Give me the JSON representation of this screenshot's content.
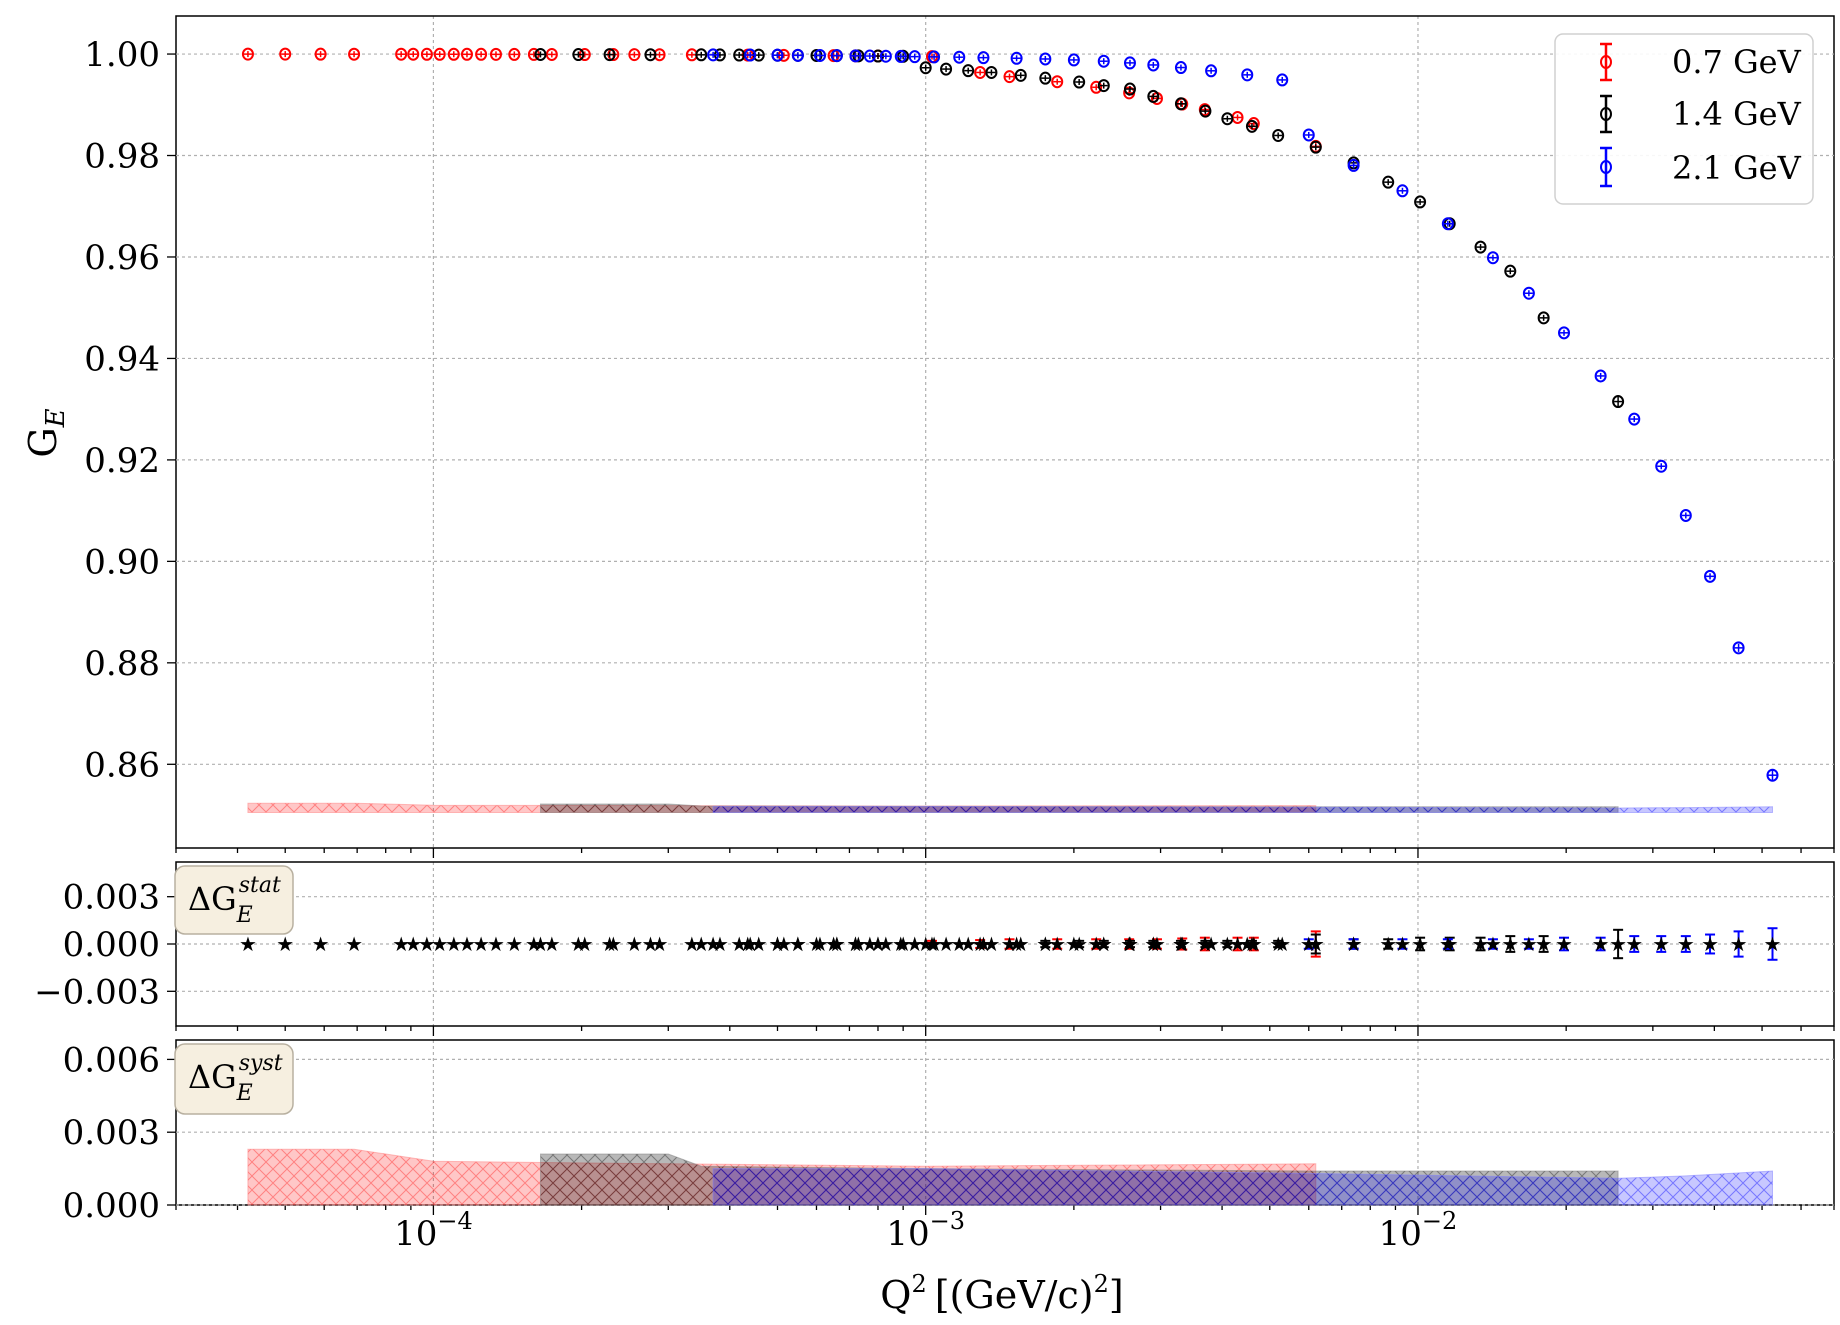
{
  "chart_data": [
    {
      "id": "main",
      "type": "scatter",
      "ylabel_main": "G",
      "ylabel_sub": "E",
      "xscale": "log",
      "xlim": [
        3e-05,
        0.07
      ],
      "ylim": [
        0.8435,
        1.0075
      ],
      "yticks": [
        "0.86",
        "0.88",
        "0.90",
        "0.92",
        "0.94",
        "0.96",
        "0.98",
        "1.00"
      ],
      "grid": true,
      "legend_position": "top-right",
      "series": [
        {
          "name": "0.7 GeV",
          "color": "#ff0000",
          "x": [
            4.2e-05,
            5e-05,
            5.9e-05,
            6.9e-05,
            8.6e-05,
            9.1e-05,
            9.7e-05,
            0.000103,
            0.00011,
            0.000117,
            0.000125,
            0.000134,
            0.000146,
            0.00016,
            0.000174,
            0.000203,
            0.000232,
            0.000256,
            0.000288,
            0.000335,
            0.000435,
            0.000515,
            0.00065,
            0.00072,
            0.0008,
            0.00103,
            0.00129,
            0.00148,
            0.00185,
            0.00222,
            0.00259,
            0.00295,
            0.00332,
            0.00369,
            0.0043,
            0.00464,
            0.0062
          ],
          "y": [
            0.99999,
            0.99999,
            0.99998,
            0.99997,
            0.99997,
            0.99997,
            0.99996,
            0.99996,
            0.99996,
            0.99995,
            0.99995,
            0.99994,
            0.99993,
            0.99993,
            0.99992,
            0.99991,
            0.9999,
            0.99989,
            0.99987,
            0.99985,
            0.9998,
            0.99975,
            0.99969,
            0.99965,
            0.99961,
            0.9995,
            0.99637,
            0.99555,
            0.99455,
            0.99345,
            0.99235,
            0.99125,
            0.99015,
            0.98905,
            0.9875,
            0.9863,
            0.9818
          ],
          "err": [
            6e-05,
            6e-05,
            6e-05,
            6e-05,
            6e-05,
            6e-05,
            6e-05,
            6e-05,
            6e-05,
            6e-05,
            6e-05,
            6e-05,
            6e-05,
            6e-05,
            6e-05,
            6e-05,
            6e-05,
            6e-05,
            6e-05,
            6e-05,
            6e-05,
            6e-05,
            6e-05,
            6e-05,
            6e-05,
            0.0002,
            0.00025,
            0.0003,
            0.0003,
            0.0003,
            0.0003,
            0.0003,
            0.00035,
            0.0004,
            0.0004,
            0.0004,
            0.0008
          ]
        },
        {
          "name": "1.4 GeV",
          "color": "#000000",
          "x": [
            0.000165,
            0.000197,
            0.000228,
            0.000276,
            0.00035,
            0.000382,
            0.000418,
            0.000458,
            0.0005,
            0.00055,
            0.0006,
            0.00066,
            0.00073,
            0.0008,
            0.0009,
            0.001,
            0.0011,
            0.00122,
            0.00136,
            0.00156,
            0.00175,
            0.00205,
            0.0023,
            0.0026,
            0.0029,
            0.0033,
            0.0037,
            0.0041,
            0.0046,
            0.0052,
            0.0062,
            0.0074,
            0.0087,
            0.0101,
            0.0116,
            0.0134,
            0.0154,
            0.018,
            0.0255
          ],
          "y": [
            0.99992,
            0.9999,
            0.99989,
            0.99987,
            0.99985,
            0.99983,
            0.99981,
            0.99979,
            0.99977,
            0.99975,
            0.99972,
            0.99969,
            0.99965,
            0.99961,
            0.99956,
            0.9973,
            0.99704,
            0.99673,
            0.99637,
            0.9958,
            0.99525,
            0.99449,
            0.99378,
            0.9931,
            0.99165,
            0.9902,
            0.98875,
            0.98725,
            0.98575,
            0.98395,
            0.98165,
            0.97855,
            0.97475,
            0.97085,
            0.96655,
            0.96195,
            0.9572,
            0.948,
            0.9315
          ],
          "err": [
            6e-05,
            6e-05,
            6e-05,
            6e-05,
            6e-05,
            6e-05,
            6e-05,
            6e-05,
            6e-05,
            6e-05,
            6e-05,
            6e-05,
            6e-05,
            6e-05,
            6e-05,
            6e-05,
            6e-05,
            6e-05,
            6e-05,
            6e-05,
            0.0002,
            0.0002,
            0.0002,
            0.0002,
            0.0002,
            0.0002,
            0.0002,
            0.0002,
            0.0002,
            0.0002,
            0.0006,
            0.0003,
            0.0003,
            0.0004,
            0.0004,
            0.0004,
            0.0005,
            0.0005,
            0.0009
          ]
        },
        {
          "name": "2.1 GeV",
          "color": "#0000ff",
          "x": [
            0.00037,
            0.00044,
            0.0005,
            0.00055,
            0.00061,
            0.00066,
            0.00072,
            0.00077,
            0.00083,
            0.00089,
            0.00095,
            0.00104,
            0.00117,
            0.00131,
            0.00153,
            0.00175,
            0.002,
            0.0023,
            0.0026,
            0.0029,
            0.0033,
            0.0038,
            0.0045,
            0.0053,
            0.006,
            0.0074,
            0.0093,
            0.0115,
            0.0142,
            0.0168,
            0.0198,
            0.0235,
            0.0275,
            0.0312,
            0.035,
            0.0392,
            0.0448,
            0.0525
          ],
          "y": [
            0.99984,
            0.99981,
            0.99978,
            0.99975,
            0.99972,
            0.99969,
            0.99965,
            0.99961,
            0.99957,
            0.99953,
            0.99949,
            0.99944,
            0.99938,
            0.99929,
            0.99917,
            0.99903,
            0.99884,
            0.99859,
            0.99826,
            0.99785,
            0.99734,
            0.9967,
            0.9959,
            0.9949,
            0.98405,
            0.97805,
            0.97305,
            0.96655,
            0.95985,
            0.95285,
            0.94505,
            0.93655,
            0.92805,
            0.91875,
            0.90905,
            0.89705,
            0.88295,
            0.85785
          ],
          "err": [
            6e-05,
            6e-05,
            6e-05,
            6e-05,
            6e-05,
            6e-05,
            6e-05,
            6e-05,
            6e-05,
            6e-05,
            6e-05,
            6e-05,
            6e-05,
            6e-05,
            6e-05,
            6e-05,
            6e-05,
            6e-05,
            6e-05,
            6e-05,
            6e-05,
            6e-05,
            6e-05,
            6e-05,
            0.0003,
            0.0003,
            0.0003,
            0.0003,
            0.0003,
            0.0003,
            0.0004,
            0.0004,
            0.0005,
            0.0005,
            0.0005,
            0.0006,
            0.0008,
            0.001
          ]
        }
      ],
      "syst_bands": [
        {
          "series": "0.7 GeV",
          "color": "#ff8080",
          "x": [
            4.2e-05,
            6.9e-05,
            0.0001,
            0.0003,
            0.001,
            0.0062
          ],
          "height": [
            0.0023,
            0.0023,
            0.0018,
            0.0017,
            0.0016,
            0.0017
          ]
        },
        {
          "series": "1.4 GeV",
          "color": "#808080",
          "x": [
            0.000165,
            0.0003,
            0.00035,
            0.001,
            0.0062,
            0.0255
          ],
          "height": [
            0.0021,
            0.0021,
            0.0016,
            0.0015,
            0.0014,
            0.0014
          ]
        },
        {
          "series": "2.1 GeV",
          "color": "#8080ff",
          "x": [
            0.00037,
            0.001,
            0.0062,
            0.0255,
            0.035,
            0.0525
          ],
          "height": [
            0.0015,
            0.0015,
            0.0013,
            0.0011,
            0.0012,
            0.0014
          ]
        }
      ]
    },
    {
      "id": "stat",
      "type": "scatter",
      "badge_main": "ΔG",
      "badge_sub": "E",
      "badge_sup": "stat",
      "ylim": [
        -0.0052,
        0.0052
      ],
      "yticks": [
        "−0.003",
        "0.000",
        "0.003"
      ],
      "grid": true
    },
    {
      "id": "syst",
      "type": "area",
      "badge_main": "ΔG",
      "badge_sub": "E",
      "badge_sup": "syst",
      "ylim": [
        0,
        0.0068
      ],
      "yticks": [
        "0.000",
        "0.003",
        "0.006"
      ],
      "grid": true,
      "xlabel_main": "Q",
      "xlabel_sup": "2",
      "xlabel_unit": "[(GeV/c)",
      "xlabel_unit_sup": "2",
      "xlabel_close": "]",
      "xtick_base": "10",
      "xticks_exp": [
        "−4",
        "−3",
        "−2"
      ]
    }
  ],
  "legend": {
    "entries": [
      {
        "label": "0.7 GeV",
        "color": "#ff0000"
      },
      {
        "label": "1.4 GeV",
        "color": "#000000"
      },
      {
        "label": "2.1 GeV",
        "color": "#0000ff"
      }
    ]
  }
}
